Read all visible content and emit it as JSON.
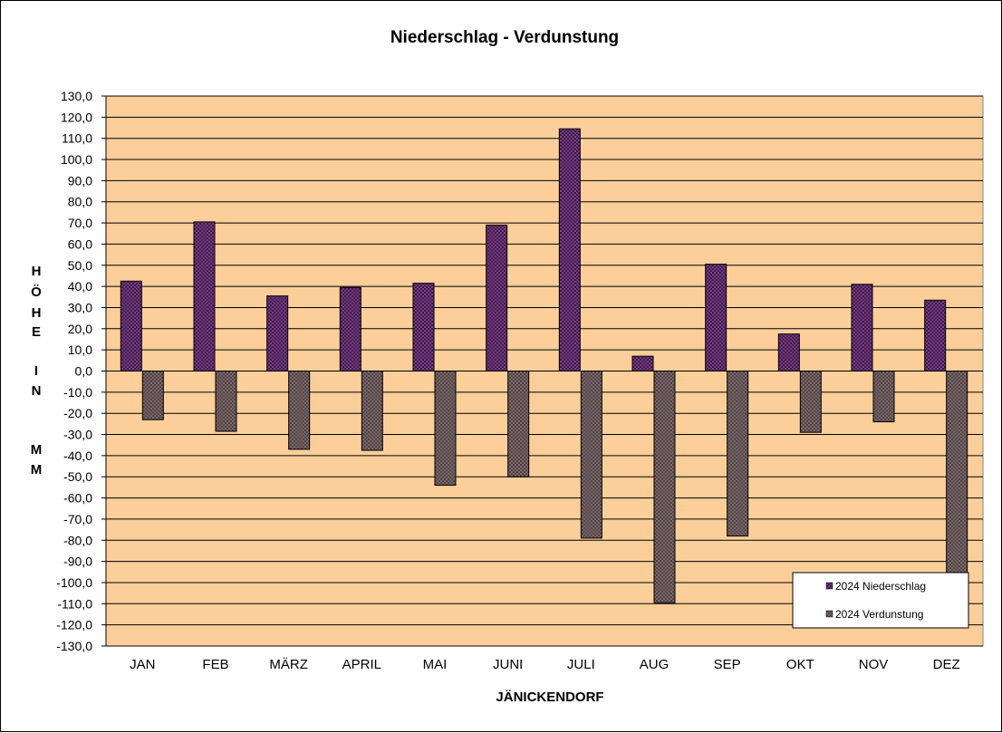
{
  "chart_data": {
    "type": "bar",
    "title": "Niederschlag  -  Verdunstung",
    "xlabel": "JÄNICKENDORF",
    "ylabel_letters": [
      "H",
      "Ö",
      "H",
      "E",
      "",
      "I",
      "N",
      "",
      "M",
      "M"
    ],
    "ylim": [
      -130,
      130
    ],
    "ytick_step": 10,
    "ytick_labels": [
      "130,0",
      "120,0",
      "110,0",
      "100,0",
      "90,0",
      "80,0",
      "70,0",
      "60,0",
      "50,0",
      "40,0",
      "30,0",
      "20,0",
      "10,0",
      "0,0",
      "-10,0",
      "-20,0",
      "-30,0",
      "-40,0",
      "-50,0",
      "-60,0",
      "-70,0",
      "-80,0",
      "-90,0",
      "-100,0",
      "-110,0",
      "-120,0",
      "-130,0"
    ],
    "categories": [
      "JAN",
      "FEB",
      "MÄRZ",
      "APRIL",
      "MAI",
      "JUNI",
      "JULI",
      "AUG",
      "SEP",
      "OKT",
      "NOV",
      "DEZ"
    ],
    "series": [
      {
        "name": "2024 Niederschlag",
        "color": "#3d1a4a",
        "values": [
          42.5,
          70.5,
          35.5,
          39.5,
          41.5,
          69.0,
          114.5,
          7.0,
          50.5,
          17.5,
          41.0,
          33.5
        ]
      },
      {
        "name": "2024 Verdunstung",
        "color": "#7a2a2e",
        "values": [
          -23.0,
          -28.5,
          -37.0,
          -37.5,
          -54.0,
          -50.0,
          -79.0,
          -109.5,
          -78.0,
          -29.0,
          -24.0,
          -100.0
        ]
      }
    ],
    "plot_background": "#fccf9a",
    "legend_position": "bottom-right",
    "grid": true
  }
}
